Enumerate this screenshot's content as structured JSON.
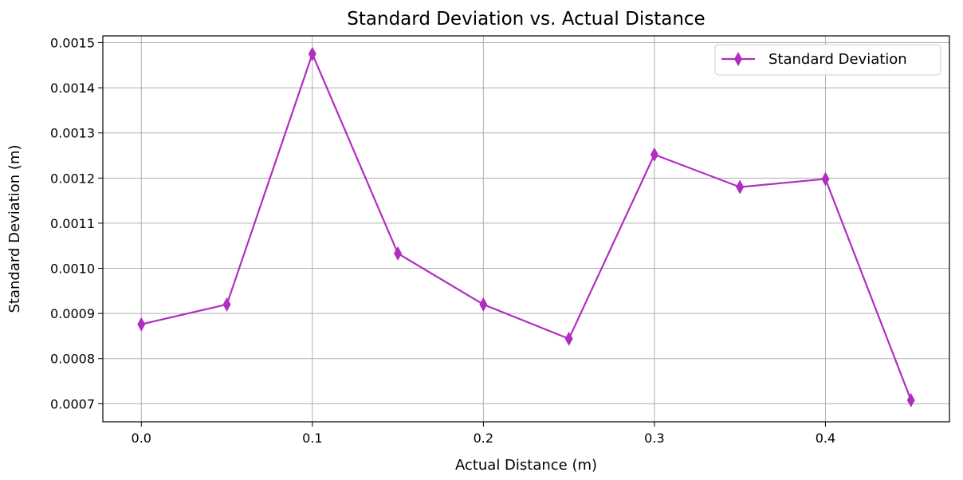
{
  "chart_data": {
    "type": "line",
    "title": "Standard Deviation vs. Actual Distance",
    "xlabel": "Actual Distance (m)",
    "ylabel": "Standard Deviation (m)",
    "xlim": [
      -0.0225,
      0.4725
    ],
    "ylim": [
      0.00066,
      0.001515
    ],
    "xticks": [
      0.0,
      0.1,
      0.2,
      0.3,
      0.4
    ],
    "xtick_labels": [
      "0.0",
      "0.1",
      "0.2",
      "0.3",
      "0.4"
    ],
    "yticks": [
      0.0007,
      0.0008,
      0.0009,
      0.001,
      0.0011,
      0.0012,
      0.0013,
      0.0014,
      0.0015
    ],
    "ytick_labels": [
      "0.0007",
      "0.0008",
      "0.0009",
      "0.0010",
      "0.0011",
      "0.0012",
      "0.0013",
      "0.0014",
      "0.0015"
    ],
    "grid": true,
    "legend_position": "top-right",
    "series": [
      {
        "name": "Standard Deviation",
        "color": "#b02ebf",
        "marker": "diamond",
        "x": [
          0.0,
          0.05,
          0.1,
          0.15,
          0.2,
          0.25,
          0.3,
          0.35,
          0.4,
          0.45
        ],
        "y": [
          0.000876,
          0.00092,
          0.001475,
          0.001033,
          0.00092,
          0.000844,
          0.001252,
          0.00118,
          0.001198,
          0.000708
        ]
      }
    ]
  }
}
